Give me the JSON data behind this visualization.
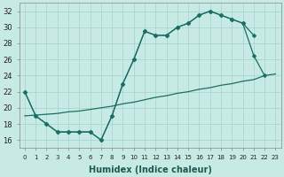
{
  "xlabel": "Humidex (Indice chaleur)",
  "bg_color": "#c8eae5",
  "grid_color": "#a8d5d0",
  "line_color": "#1a6e64",
  "ylim": [
    15,
    33
  ],
  "yticks": [
    16,
    18,
    20,
    22,
    24,
    26,
    28,
    30,
    32
  ],
  "xticks": [
    0,
    1,
    2,
    3,
    4,
    5,
    6,
    7,
    8,
    9,
    10,
    11,
    12,
    13,
    14,
    15,
    16,
    17,
    18,
    19,
    20,
    21,
    22,
    23
  ],
  "line_zigzag_x": [
    0,
    1,
    2,
    3,
    4,
    5,
    6,
    7,
    8,
    9,
    10,
    11,
    12,
    13,
    14,
    15,
    16,
    17,
    18,
    19,
    20,
    21,
    22
  ],
  "line_zigzag_y": [
    22,
    19,
    18,
    17,
    17,
    17,
    17,
    16,
    19,
    23,
    26,
    29.5,
    29,
    29,
    30,
    30.5,
    31.5,
    32,
    31.5,
    31,
    30.5,
    26.5,
    24
  ],
  "line_zigzag2_x": [
    0,
    1,
    2,
    3,
    4,
    5,
    6,
    7,
    8,
    9,
    10,
    11,
    12,
    13,
    14,
    15,
    16,
    17,
    18,
    19,
    20,
    21
  ],
  "line_zigzag2_y": [
    22,
    19,
    18,
    17,
    17,
    17,
    17,
    16,
    19,
    23,
    26,
    29.5,
    29,
    29,
    30,
    30.5,
    31.5,
    32,
    31.5,
    31,
    30.5,
    29
  ],
  "line_diag_x": [
    0,
    1,
    2,
    3,
    4,
    5,
    6,
    7,
    8,
    9,
    10,
    11,
    12,
    13,
    14,
    15,
    16,
    17,
    18,
    19,
    20,
    21,
    22,
    23
  ],
  "line_diag_y": [
    19.0,
    19.1,
    19.2,
    19.3,
    19.5,
    19.6,
    19.8,
    20.0,
    20.2,
    20.5,
    20.7,
    21.0,
    21.3,
    21.5,
    21.8,
    22.0,
    22.3,
    22.5,
    22.8,
    23.0,
    23.3,
    23.5,
    24.0,
    24.2
  ],
  "marker": "D",
  "markersize": 2.5
}
